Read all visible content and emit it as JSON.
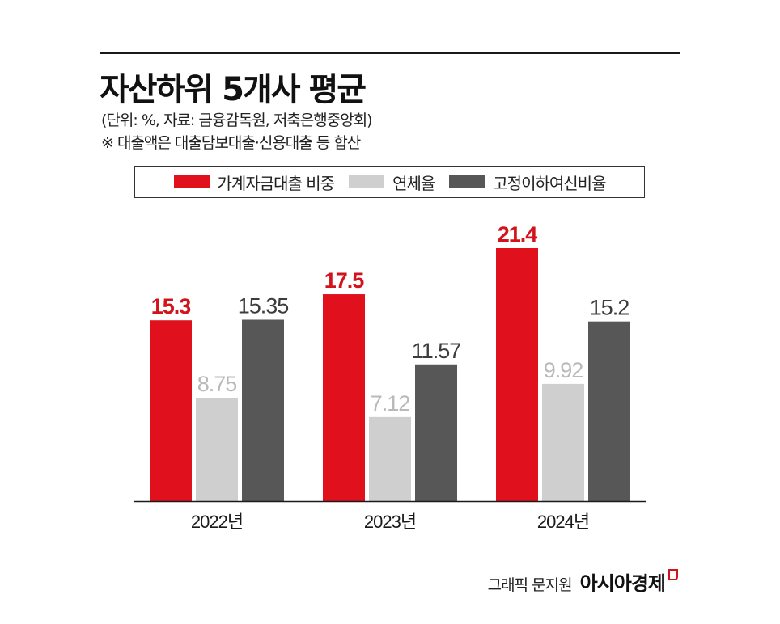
{
  "header": {
    "title": "자산하위 5개사 평균",
    "subtitle": "(단위: %, 자료: 금융감독원, 저축은행중앙회)",
    "note": "※ 대출액은 대출담보대출·신용대출 등 합산"
  },
  "colors": {
    "household": "#e0101c",
    "delinquency": "#cfcfcf",
    "substandard": "#575757",
    "household_label": "#d2131c",
    "delinquency_label": "#b9b9b9",
    "substandard_label": "#3c3c3c",
    "axis": "#1a1a1a"
  },
  "chart_data": {
    "type": "bar",
    "title": "자산하위 5개사 평균",
    "categories": [
      "2022년",
      "2023년",
      "2024년"
    ],
    "series": [
      {
        "name": "가계자금대출 비중",
        "values": [
          15.3,
          17.5,
          21.4
        ],
        "labels": [
          "15.3",
          "17.5",
          "21.4"
        ]
      },
      {
        "name": "연체율",
        "values": [
          8.75,
          7.12,
          9.92
        ],
        "labels": [
          "8.75",
          "7.12",
          "9.92"
        ]
      },
      {
        "name": "고정이하여신비율",
        "values": [
          15.35,
          11.57,
          15.2
        ],
        "labels": [
          "15.35",
          "11.57",
          "15.2"
        ]
      }
    ],
    "ylim": [
      0,
      21.4
    ],
    "legend": "top",
    "grid": false,
    "xlabel": "",
    "ylabel": ""
  },
  "credit": {
    "label": "그래픽 문지원",
    "brand": "아시아경제"
  }
}
